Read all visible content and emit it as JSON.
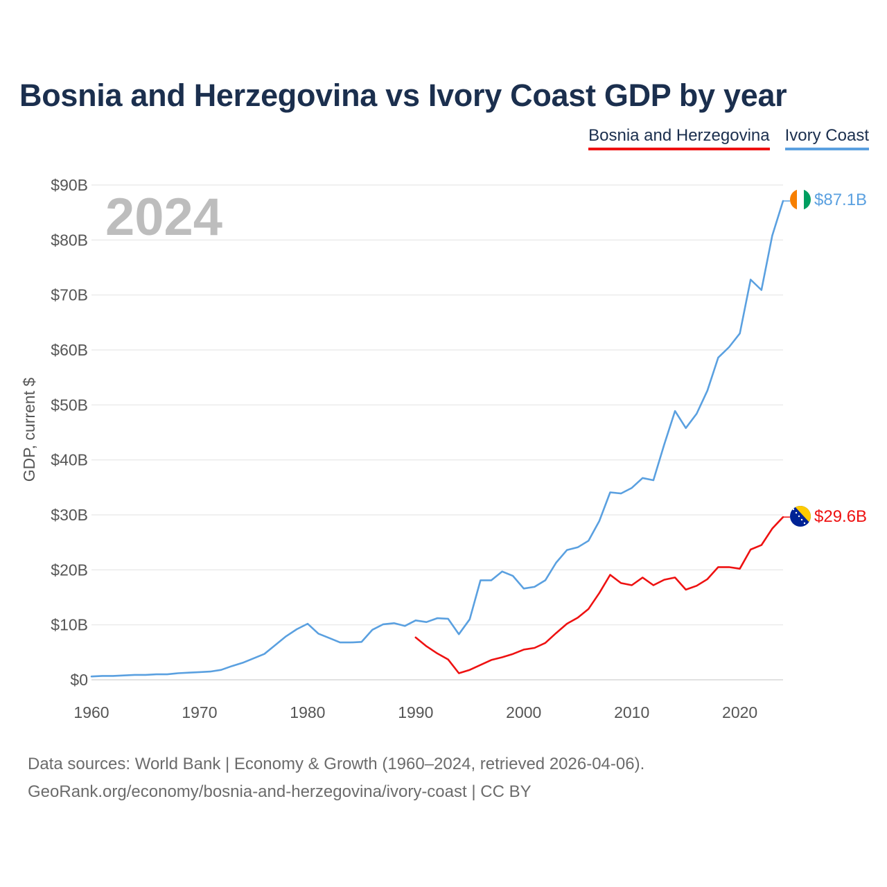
{
  "title": "Bosnia and Herzegovina vs Ivory Coast GDP by year",
  "legend": [
    {
      "name": "Bosnia and Herzegovina",
      "color": "#ee1111"
    },
    {
      "name": "Ivory Coast",
      "color": "#5aa0e0"
    }
  ],
  "footer": {
    "line1": "Data sources: World Bank | Economy & Growth (1960–2024, retrieved 2026-04-06).",
    "line2": "GeoRank.org/economy/bosnia-and-herzegovina/ivory-coast | CC BY"
  },
  "chart_data": {
    "type": "line",
    "title": "Bosnia and Herzegovina vs Ivory Coast GDP by year",
    "xlabel": "",
    "ylabel": "GDP, current $",
    "xlim": [
      1960,
      2024
    ],
    "ylim": [
      0,
      90
    ],
    "x_ticks": [
      1960,
      1970,
      1980,
      1990,
      2000,
      2010,
      2020
    ],
    "x_tick_labels": [
      "1960",
      "1970",
      "1980",
      "1990",
      "2000",
      "2010",
      "2020"
    ],
    "y_ticks": [
      0,
      10,
      20,
      30,
      40,
      50,
      60,
      70,
      80,
      90
    ],
    "y_tick_labels": [
      "$0",
      "$10B",
      "$20B",
      "$30B",
      "$40B",
      "$50B",
      "$60B",
      "$70B",
      "$80B",
      "$90B"
    ],
    "year_label": "2024",
    "grid": true,
    "series": [
      {
        "name": "Ivory Coast",
        "color": "#5aa0e0",
        "end_label": "$87.1B",
        "x": [
          1960,
          1961,
          1962,
          1963,
          1964,
          1965,
          1966,
          1967,
          1968,
          1969,
          1970,
          1971,
          1972,
          1973,
          1974,
          1975,
          1976,
          1977,
          1978,
          1979,
          1980,
          1981,
          1982,
          1983,
          1984,
          1985,
          1986,
          1987,
          1988,
          1989,
          1990,
          1991,
          1992,
          1993,
          1994,
          1995,
          1996,
          1997,
          1998,
          1999,
          2000,
          2001,
          2002,
          2003,
          2004,
          2005,
          2006,
          2007,
          2008,
          2009,
          2010,
          2011,
          2012,
          2013,
          2014,
          2015,
          2016,
          2017,
          2018,
          2019,
          2020,
          2021,
          2022,
          2023,
          2024
        ],
        "values": [
          0.6,
          0.7,
          0.7,
          0.8,
          0.9,
          0.9,
          1.0,
          1.0,
          1.2,
          1.3,
          1.4,
          1.5,
          1.8,
          2.5,
          3.1,
          3.9,
          4.7,
          6.3,
          7.9,
          9.2,
          10.2,
          8.4,
          7.6,
          6.8,
          6.8,
          6.9,
          9.1,
          10.1,
          10.3,
          9.8,
          10.8,
          10.5,
          11.2,
          11.1,
          8.3,
          11.0,
          18.1,
          18.1,
          19.7,
          18.9,
          16.6,
          16.9,
          18.1,
          21.3,
          23.6,
          24.1,
          25.3,
          28.9,
          34.1,
          33.9,
          34.9,
          36.7,
          36.3,
          42.8,
          48.9,
          45.8,
          48.4,
          52.6,
          58.6,
          60.5,
          63.0,
          72.8,
          70.9,
          80.8,
          87.1
        ]
      },
      {
        "name": "Bosnia and Herzegovina",
        "color": "#ee1111",
        "end_label": "$29.6B",
        "x": [
          1990,
          1991,
          1992,
          1993,
          1994,
          1995,
          1996,
          1997,
          1998,
          1999,
          2000,
          2001,
          2002,
          2003,
          2004,
          2005,
          2006,
          2007,
          2008,
          2009,
          2010,
          2011,
          2012,
          2013,
          2014,
          2015,
          2016,
          2017,
          2018,
          2019,
          2020,
          2021,
          2022,
          2023,
          2024
        ],
        "values": [
          7.7,
          6.1,
          4.8,
          3.7,
          1.2,
          1.8,
          2.7,
          3.6,
          4.1,
          4.7,
          5.5,
          5.8,
          6.7,
          8.5,
          10.2,
          11.3,
          12.9,
          15.8,
          19.1,
          17.6,
          17.2,
          18.6,
          17.2,
          18.2,
          18.6,
          16.4,
          17.1,
          18.3,
          20.5,
          20.5,
          20.2,
          23.7,
          24.5,
          27.5,
          29.6
        ]
      }
    ]
  }
}
